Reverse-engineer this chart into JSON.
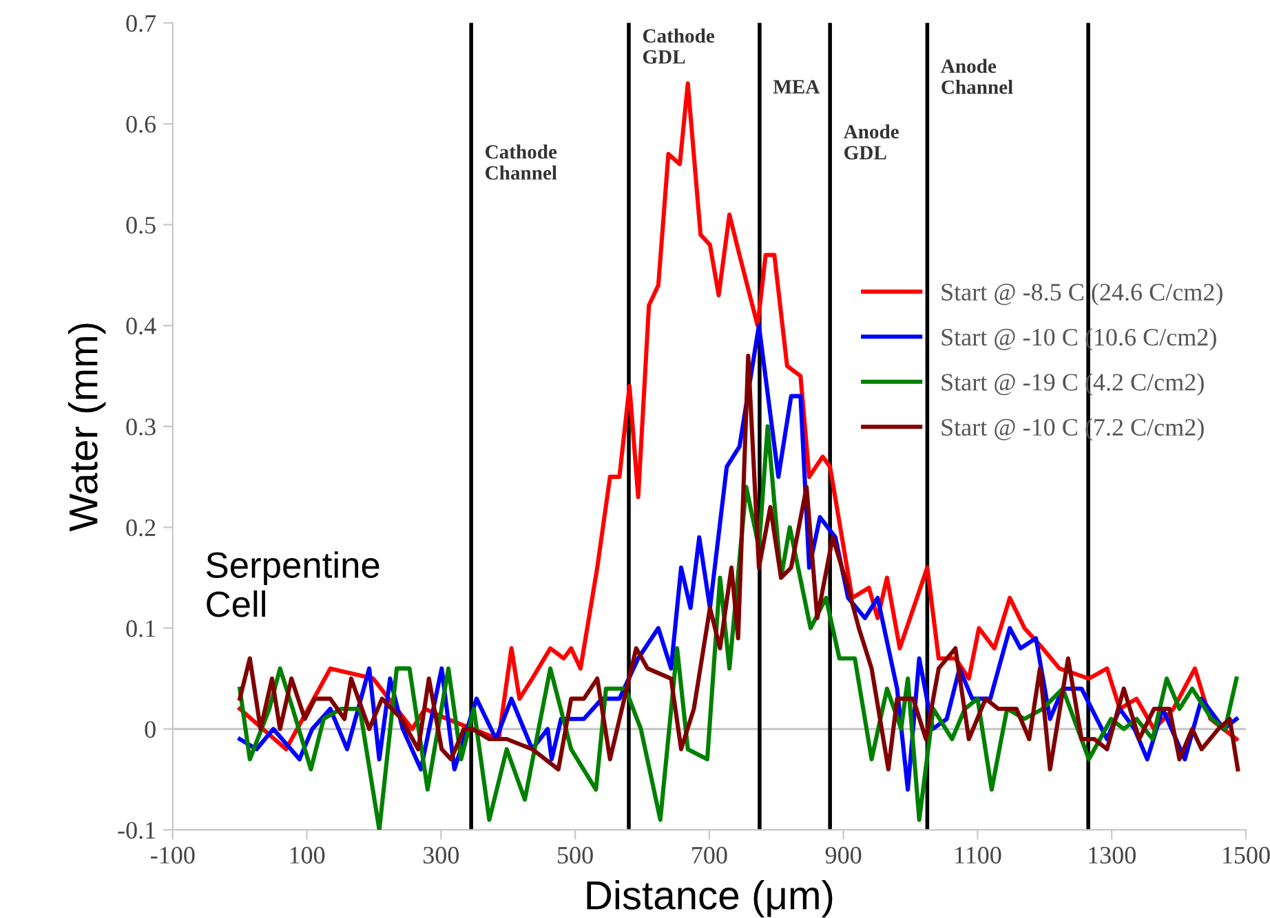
{
  "chart_data": {
    "type": "line",
    "xlabel": "Distance (μm)",
    "ylabel": "Water (mm)",
    "xlim": [
      -100,
      1500
    ],
    "xticks": [
      -100,
      100,
      300,
      500,
      700,
      900,
      1100,
      1300,
      1500
    ],
    "ylim": [
      -0.1,
      0.7
    ],
    "yticks": [
      -0.1,
      0,
      0.1,
      0.2,
      0.3,
      0.4,
      0.5,
      0.6,
      0.7
    ],
    "grid": false,
    "legend": "right",
    "marker": "none",
    "line_style": "solid",
    "ref_lines": [
      {
        "axis": "y",
        "value": 0,
        "color": "#c8c8c8"
      },
      {
        "axis": "x",
        "value": 345,
        "color": "#000000"
      },
      {
        "axis": "x",
        "value": 580,
        "color": "#000000"
      },
      {
        "axis": "x",
        "value": 775,
        "color": "#000000"
      },
      {
        "axis": "x",
        "value": 880,
        "color": "#000000"
      },
      {
        "axis": "x",
        "value": 1025,
        "color": "#000000"
      },
      {
        "axis": "x",
        "value": 1265,
        "color": "#000000"
      }
    ],
    "annotations": [
      "Serpentine\nCell",
      "Cathode\nChannel",
      "Cathode\nGDL",
      "MEA",
      "Anode\nGDL",
      "Anode\nChannel"
    ],
    "series": [
      {
        "name": "Start @ -8.5 C (24.6 C/cm2)",
        "color": "#ff0000",
        "x": [
          0,
          69,
          135,
          199,
          257,
          276,
          309,
          347,
          386,
          405,
          417,
          436,
          463,
          483,
          494,
          508,
          533,
          552,
          566,
          581,
          594,
          610,
          624,
          639,
          656,
          668,
          687,
          701,
          714,
          730,
          745,
          772,
          784,
          797,
          816,
          836,
          849,
          869,
          880,
          913,
          938,
          951,
          965,
          984,
          1025,
          1042,
          1067,
          1087,
          1102,
          1125,
          1148,
          1170,
          1197,
          1222,
          1266,
          1293,
          1312,
          1337,
          1363,
          1392,
          1424,
          1447,
          1486
        ],
        "values": [
          0.02,
          -0.02,
          0.06,
          0.05,
          0.0,
          0.02,
          0.01,
          0.0,
          -0.01,
          0.08,
          0.03,
          0.05,
          0.08,
          0.07,
          0.08,
          0.06,
          0.16,
          0.25,
          0.25,
          0.34,
          0.23,
          0.42,
          0.44,
          0.57,
          0.56,
          0.64,
          0.49,
          0.48,
          0.43,
          0.51,
          0.47,
          0.4,
          0.47,
          0.47,
          0.36,
          0.35,
          0.25,
          0.27,
          0.26,
          0.13,
          0.14,
          0.11,
          0.15,
          0.08,
          0.16,
          0.07,
          0.07,
          0.05,
          0.1,
          0.08,
          0.13,
          0.1,
          0.08,
          0.06,
          0.05,
          0.06,
          0.02,
          0.03,
          0.0,
          0.02,
          0.06,
          0.01,
          -0.01
        ]
      },
      {
        "name": "Start @ -10 C (10.6 C/cm2)",
        "color": "#0000ff",
        "x": [
          0,
          25,
          50,
          89,
          108,
          135,
          160,
          193,
          208,
          224,
          243,
          270,
          301,
          320,
          353,
          382,
          405,
          436,
          459,
          465,
          479,
          513,
          540,
          566,
          594,
          624,
          643,
          658,
          672,
          685,
          701,
          726,
          745,
          774,
          803,
          822,
          836,
          849,
          865,
          888,
          907,
          932,
          951,
          980,
          996,
          1013,
          1033,
          1054,
          1073,
          1092,
          1119,
          1148,
          1164,
          1187,
          1208,
          1227,
          1255,
          1293,
          1312,
          1334,
          1353,
          1376,
          1409,
          1434,
          1467,
          1486
        ],
        "values": [
          -0.01,
          -0.02,
          0.0,
          -0.03,
          0.0,
          0.02,
          -0.02,
          0.06,
          -0.03,
          0.05,
          0.0,
          -0.04,
          0.06,
          -0.04,
          0.03,
          -0.01,
          0.03,
          -0.02,
          0.0,
          -0.03,
          0.01,
          0.01,
          0.03,
          0.03,
          0.07,
          0.1,
          0.06,
          0.16,
          0.12,
          0.19,
          0.12,
          0.26,
          0.28,
          0.4,
          0.25,
          0.33,
          0.33,
          0.16,
          0.21,
          0.19,
          0.13,
          0.11,
          0.13,
          0.04,
          -0.06,
          0.07,
          0.0,
          0.01,
          0.06,
          0.03,
          0.03,
          0.1,
          0.08,
          0.09,
          0.01,
          0.04,
          0.04,
          -0.01,
          0.02,
          0.0,
          -0.03,
          0.02,
          -0.03,
          0.03,
          0.0,
          0.01
        ]
      },
      {
        "name": "Start @ -19 C (4.2 C/cm2)",
        "color": "#008000",
        "x": [
          0,
          15,
          44,
          60,
          79,
          106,
          125,
          151,
          179,
          208,
          234,
          253,
          280,
          311,
          330,
          349,
          372,
          398,
          425,
          463,
          494,
          531,
          546,
          575,
          598,
          627,
          652,
          668,
          697,
          716,
          730,
          755,
          774,
          787,
          807,
          820,
          851,
          874,
          894,
          917,
          942,
          965,
          986,
          996,
          1013,
          1034,
          1062,
          1081,
          1100,
          1121,
          1144,
          1170,
          1197,
          1227,
          1266,
          1299,
          1318,
          1337,
          1361,
          1382,
          1401,
          1420,
          1449,
          1469,
          1486
        ],
        "values": [
          0.04,
          -0.03,
          0.02,
          0.06,
          0.02,
          -0.04,
          0.01,
          0.02,
          0.02,
          -0.1,
          0.06,
          0.06,
          -0.06,
          0.06,
          -0.03,
          0.02,
          -0.09,
          -0.02,
          -0.07,
          0.06,
          -0.02,
          -0.06,
          0.04,
          0.04,
          0.0,
          -0.09,
          0.08,
          -0.02,
          -0.03,
          0.15,
          0.06,
          0.24,
          0.18,
          0.3,
          0.15,
          0.2,
          0.1,
          0.13,
          0.07,
          0.07,
          -0.03,
          0.04,
          0.0,
          0.05,
          -0.09,
          0.02,
          -0.01,
          0.02,
          0.03,
          -0.06,
          0.02,
          0.01,
          0.02,
          0.04,
          -0.03,
          0.01,
          0.0,
          0.01,
          -0.01,
          0.05,
          0.02,
          0.04,
          0.01,
          0.0,
          0.05
        ]
      },
      {
        "name": "Start @ -10 C (7.2 C/cm2)",
        "color": "#800000",
        "x": [
          0,
          15,
          31,
          48,
          60,
          77,
          97,
          112,
          135,
          156,
          166,
          193,
          212,
          241,
          266,
          282,
          301,
          315,
          334,
          347,
          372,
          398,
          436,
          475,
          494,
          513,
          533,
          552,
          591,
          608,
          643,
          658,
          677,
          701,
          716,
          733,
          743,
          758,
          774,
          791,
          807,
          822,
          845,
          861,
          884,
          907,
          923,
          942,
          967,
          980,
          1004,
          1023,
          1042,
          1067,
          1087,
          1112,
          1131,
          1158,
          1177,
          1193,
          1208,
          1235,
          1255,
          1274,
          1293,
          1318,
          1341,
          1363,
          1386,
          1401,
          1420,
          1434,
          1459,
          1476,
          1488
        ],
        "values": [
          0.03,
          0.07,
          0.0,
          0.05,
          0.0,
          0.05,
          0.01,
          0.03,
          0.03,
          0.01,
          0.05,
          0.0,
          0.03,
          0.01,
          -0.02,
          0.05,
          -0.02,
          -0.03,
          0.0,
          0.0,
          -0.01,
          -0.01,
          -0.02,
          -0.04,
          0.03,
          0.03,
          0.05,
          -0.03,
          0.08,
          0.06,
          0.05,
          -0.02,
          0.02,
          0.12,
          0.08,
          0.16,
          0.09,
          0.37,
          0.16,
          0.22,
          0.15,
          0.16,
          0.24,
          0.11,
          0.19,
          0.14,
          0.1,
          0.06,
          -0.04,
          0.03,
          0.03,
          -0.01,
          0.06,
          0.08,
          -0.01,
          0.03,
          0.02,
          0.02,
          -0.01,
          0.06,
          -0.04,
          0.07,
          -0.01,
          -0.01,
          -0.02,
          0.04,
          -0.01,
          0.02,
          0.02,
          -0.03,
          0.0,
          -0.02,
          0.0,
          0.01,
          -0.04
        ]
      }
    ]
  }
}
